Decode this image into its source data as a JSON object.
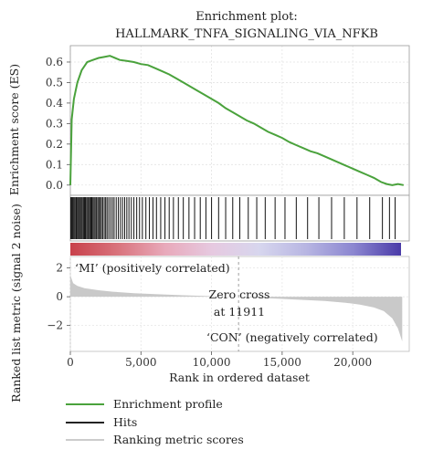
{
  "chart_data": {
    "type": "line",
    "title_line1": "Enrichment plot:",
    "title_line2": "HALLMARK_TNFA_SIGNALING_VIA_NFKB",
    "xlabel": "Rank in ordered dataset",
    "x_ticks": [
      "0",
      "5,000",
      "10,000",
      "15,000",
      "20,000"
    ],
    "x_tick_values": [
      0,
      5000,
      10000,
      15000,
      20000
    ],
    "xlim": [
      0,
      24000
    ],
    "es_panel": {
      "ylabel": "Enrichment score (ES)",
      "ylim": [
        -0.05,
        0.68
      ],
      "y_ticks": [
        "0.0",
        "0.1",
        "0.2",
        "0.3",
        "0.4",
        "0.5",
        "0.6"
      ],
      "y_tick_values": [
        0,
        0.1,
        0.2,
        0.3,
        0.4,
        0.5,
        0.6
      ],
      "grid": true,
      "series": [
        {
          "name": "Enrichment profile",
          "color": "#4aa23c",
          "x": [
            0,
            100,
            250,
            500,
            800,
            1200,
            1600,
            2000,
            2400,
            2800,
            3000,
            3500,
            4000,
            4500,
            5000,
            5500,
            6000,
            6500,
            7000,
            7500,
            8000,
            8500,
            9000,
            9500,
            10000,
            10500,
            11000,
            11500,
            12000,
            12500,
            13000,
            13500,
            14000,
            14500,
            15000,
            15500,
            16000,
            16500,
            17000,
            17500,
            18000,
            18500,
            19000,
            19500,
            20000,
            20500,
            21000,
            21500,
            22000,
            22400,
            22800,
            23200,
            23600
          ],
          "y": [
            0.0,
            0.32,
            0.42,
            0.5,
            0.56,
            0.6,
            0.61,
            0.62,
            0.625,
            0.63,
            0.625,
            0.61,
            0.605,
            0.6,
            0.59,
            0.585,
            0.57,
            0.555,
            0.54,
            0.52,
            0.5,
            0.48,
            0.46,
            0.44,
            0.42,
            0.4,
            0.375,
            0.355,
            0.335,
            0.315,
            0.3,
            0.28,
            0.26,
            0.245,
            0.23,
            0.21,
            0.195,
            0.18,
            0.165,
            0.155,
            0.14,
            0.125,
            0.11,
            0.095,
            0.08,
            0.065,
            0.05,
            0.035,
            0.015,
            0.005,
            0.0,
            0.005,
            0.0
          ]
        }
      ]
    },
    "hits_panel": {
      "hit_positions": [
        30,
        80,
        140,
        200,
        270,
        340,
        420,
        500,
        560,
        640,
        700,
        780,
        850,
        930,
        1000,
        1070,
        1150,
        1230,
        1300,
        1380,
        1450,
        1520,
        1600,
        1680,
        1760,
        1850,
        1940,
        2020,
        2110,
        2200,
        2290,
        2400,
        2500,
        2600,
        2720,
        2850,
        2980,
        3100,
        3250,
        3400,
        3550,
        3700,
        3850,
        4000,
        4150,
        4320,
        4500,
        4700,
        4900,
        5100,
        5350,
        5600,
        5850,
        6100,
        6400,
        6700,
        7000,
        7300,
        7650,
        8000,
        8400,
        8800,
        9200,
        9600,
        10000,
        10500,
        11000,
        11500,
        12000,
        12600,
        13200,
        13800,
        14500,
        15200,
        16000,
        16800,
        17600,
        18500,
        19400,
        20300,
        21200,
        22100,
        22600,
        23000
      ],
      "color_ramp": [
        "#c8414b",
        "#d9737c",
        "#e8a9ba",
        "#e6c9e0",
        "#d7d6ee",
        "#b7b5e2",
        "#8b86d0",
        "#4a3ba8"
      ]
    },
    "metric_panel": {
      "ylabel": "Ranked list metric (signal 2 noise)",
      "ylim": [
        -3.8,
        2.8
      ],
      "y_ticks": [
        "2",
        "0",
        "−2"
      ],
      "y_tick_values": [
        2,
        0,
        -2
      ],
      "fill_color": "#c9c9c9",
      "series": [
        {
          "name": "Ranking metric scores",
          "x": [
            0,
            200,
            500,
            1000,
            2000,
            3000,
            4500,
            6000,
            8000,
            10000,
            11911,
            14000,
            16000,
            18000,
            19500,
            20500,
            21500,
            22200,
            22800,
            23200,
            23500
          ],
          "y": [
            1.5,
            0.95,
            0.75,
            0.6,
            0.45,
            0.35,
            0.25,
            0.18,
            0.1,
            0.04,
            0.0,
            -0.1,
            -0.2,
            -0.3,
            -0.42,
            -0.55,
            -0.75,
            -1.0,
            -1.5,
            -2.2,
            -3.1
          ]
        }
      ],
      "annotations": {
        "positive": "‘MI’ (positively correlated)",
        "zero_cross_line1": "Zero cross",
        "zero_cross_line2": "at 11911",
        "negative": "‘CON’ (negatively correlated)"
      },
      "zero_cross": 11911
    },
    "legend": [
      {
        "label": "Enrichment profile",
        "color": "#4aa23c"
      },
      {
        "label": "Hits",
        "color": "#222222"
      },
      {
        "label": "Ranking metric scores",
        "color": "#cccccc"
      }
    ]
  }
}
